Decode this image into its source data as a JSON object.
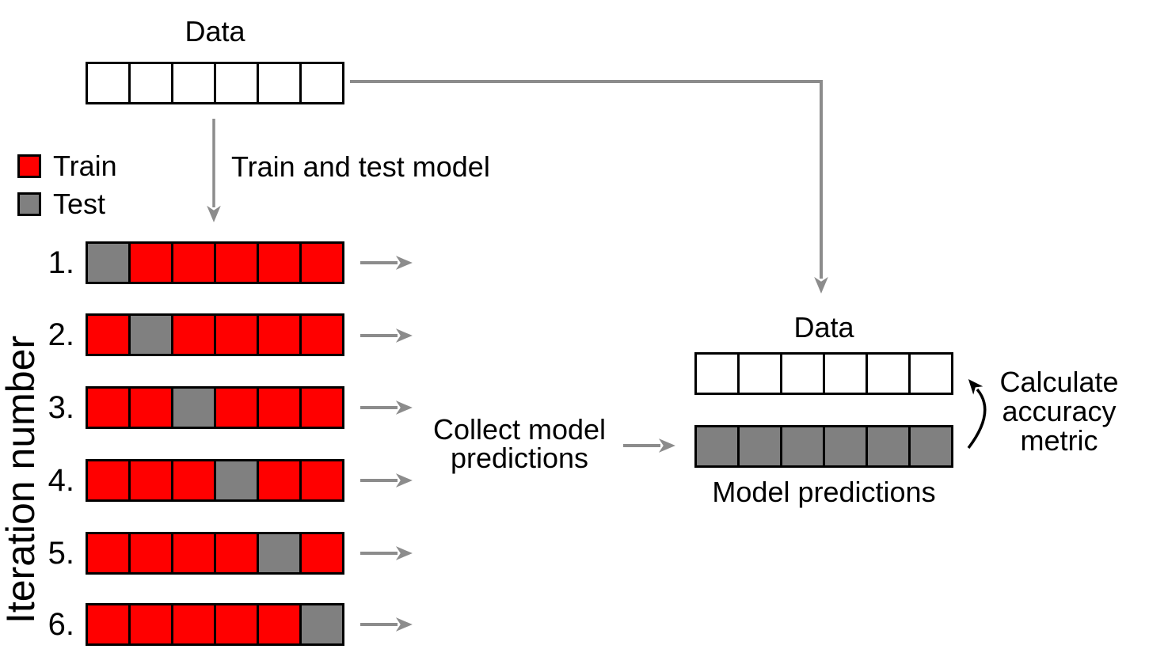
{
  "colors": {
    "train": "#ff0000",
    "test": "#808080",
    "arrow": "#8c8c8c",
    "outline": "#000000"
  },
  "top": {
    "data_label": "Data",
    "cells": [
      "empty",
      "empty",
      "empty",
      "empty",
      "empty",
      "empty"
    ]
  },
  "legend": {
    "train_label": "Train",
    "test_label": "Test"
  },
  "flow": {
    "train_and_test_label": "Train and test model",
    "collect_lines": [
      "Collect model",
      "predictions"
    ],
    "calculate_lines": [
      "Calculate",
      "accuracy",
      "metric"
    ]
  },
  "iterations": {
    "axis_label": "Iteration number",
    "rows": [
      {
        "label": "1.",
        "cells": [
          "test",
          "train",
          "train",
          "train",
          "train",
          "train"
        ]
      },
      {
        "label": "2.",
        "cells": [
          "train",
          "test",
          "train",
          "train",
          "train",
          "train"
        ]
      },
      {
        "label": "3.",
        "cells": [
          "train",
          "train",
          "test",
          "train",
          "train",
          "train"
        ]
      },
      {
        "label": "4.",
        "cells": [
          "train",
          "train",
          "train",
          "test",
          "train",
          "train"
        ]
      },
      {
        "label": "5.",
        "cells": [
          "train",
          "train",
          "train",
          "train",
          "test",
          "train"
        ]
      },
      {
        "label": "6.",
        "cells": [
          "train",
          "train",
          "train",
          "train",
          "train",
          "test"
        ]
      }
    ]
  },
  "output": {
    "data_label": "Data",
    "data_cells": [
      "empty",
      "empty",
      "empty",
      "empty",
      "empty",
      "empty"
    ],
    "predictions_label": "Model predictions",
    "prediction_cells": [
      "prediction",
      "prediction",
      "prediction",
      "prediction",
      "prediction",
      "prediction"
    ]
  }
}
